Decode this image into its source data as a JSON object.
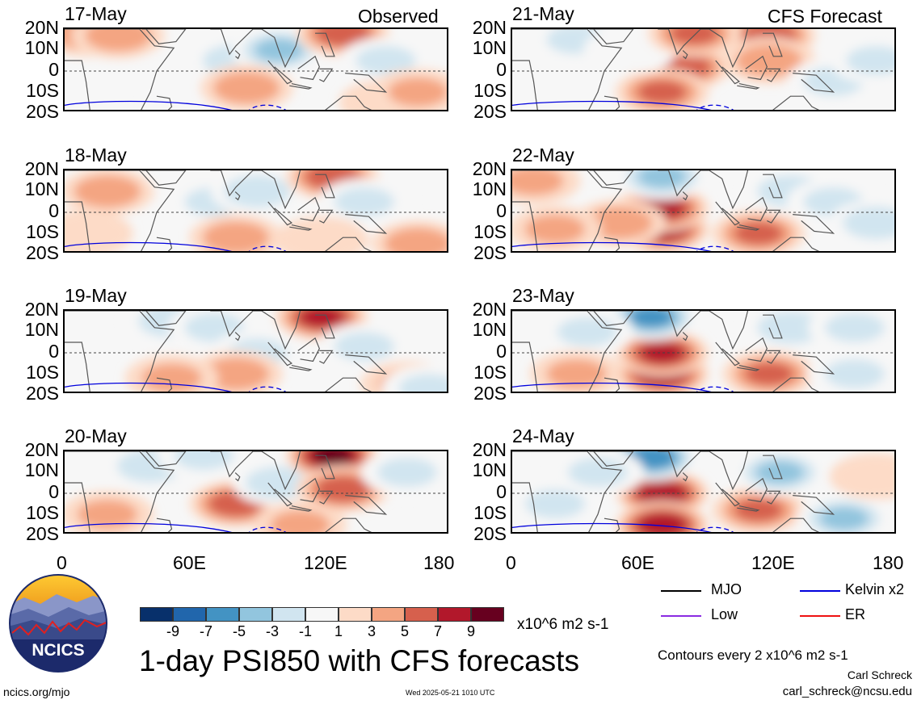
{
  "observed_label": "Observed",
  "forecast_label": "CFS Forecast",
  "lat_labels": [
    "20N",
    "10N",
    "0",
    "10S",
    "20S"
  ],
  "lon_labels": [
    "0",
    "60E",
    "120E",
    "180"
  ],
  "panels": [
    {
      "date": "17-May",
      "column": "observed"
    },
    {
      "date": "18-May",
      "column": "observed"
    },
    {
      "date": "19-May",
      "column": "observed"
    },
    {
      "date": "20-May",
      "column": "observed"
    },
    {
      "date": "21-May",
      "column": "forecast"
    },
    {
      "date": "22-May",
      "column": "forecast"
    },
    {
      "date": "23-May",
      "column": "forecast"
    },
    {
      "date": "24-May",
      "column": "forecast"
    }
  ],
  "colorbar": {
    "labels": [
      "-9",
      "-7",
      "-5",
      "-3",
      "-1",
      "1",
      "3",
      "5",
      "7",
      "9"
    ],
    "colors": [
      "#08306b",
      "#2166ac",
      "#4393c3",
      "#92c5de",
      "#d1e5f0",
      "#f7f7f7",
      "#fddbc7",
      "#f4a582",
      "#d6604d",
      "#b2182b",
      "#67001f"
    ],
    "units": "x10^6 m2 s-1"
  },
  "legend": [
    {
      "label": "MJO",
      "color": "#000000"
    },
    {
      "label": "Kelvin x2",
      "color": "#0000dd"
    },
    {
      "label": "Low",
      "color": "#8a2be2"
    },
    {
      "label": "ER",
      "color": "#ee1111"
    }
  ],
  "title": "1-day PSI850 with CFS forecasts",
  "contour_note": "Contours every 2 x10^6 m2 s-1",
  "author": "Carl Schreck",
  "email": "carl_schreck@ncsu.edu",
  "url": "ncics.org/mjo",
  "timestamp": "Wed 2025-05-21 1010 UTC",
  "logo_text": "NCICS",
  "chart_data": {
    "type": "heatmap",
    "title": "1-day PSI850 with CFS forecasts",
    "x_range": [
      0,
      180
    ],
    "y_range": [
      -20,
      20
    ],
    "x_ticks": [
      "0",
      "60E",
      "120E",
      "180"
    ],
    "y_ticks": [
      "20N",
      "10N",
      "0",
      "10S",
      "20S"
    ],
    "color_levels": [
      -9,
      -7,
      -5,
      -3,
      -1,
      1,
      3,
      5,
      7,
      9
    ],
    "units": "x10^6 m2 s-1",
    "panels": [
      {
        "date": "17-May",
        "blobs": [
          [
            10,
            18,
            4
          ],
          [
            25,
            17,
            4
          ],
          [
            55,
            -2,
            -2
          ],
          [
            80,
            5,
            -4
          ],
          [
            100,
            10,
            -5
          ],
          [
            130,
            18,
            6
          ],
          [
            150,
            5,
            -3
          ],
          [
            85,
            -8,
            4
          ],
          [
            150,
            -15,
            2
          ],
          [
            165,
            -10,
            3
          ]
        ]
      },
      {
        "date": "18-May",
        "blobs": [
          [
            20,
            10,
            4
          ],
          [
            10,
            -10,
            2
          ],
          [
            60,
            18,
            -2
          ],
          [
            70,
            5,
            -3
          ],
          [
            90,
            10,
            -4
          ],
          [
            125,
            17,
            6
          ],
          [
            140,
            5,
            -3
          ],
          [
            80,
            -12,
            4
          ],
          [
            120,
            -13,
            2
          ],
          [
            165,
            -15,
            4
          ]
        ]
      },
      {
        "date": "19-May",
        "blobs": [
          [
            50,
            15,
            -4
          ],
          [
            70,
            12,
            -3
          ],
          [
            90,
            0,
            -3
          ],
          [
            120,
            17,
            7
          ],
          [
            140,
            3,
            -3
          ],
          [
            80,
            -10,
            4
          ],
          [
            50,
            -12,
            3
          ],
          [
            160,
            -15,
            3
          ],
          [
            170,
            -17,
            -3
          ]
        ]
      },
      {
        "date": "20-May",
        "blobs": [
          [
            40,
            13,
            -4
          ],
          [
            65,
            18,
            -3
          ],
          [
            80,
            -5,
            6
          ],
          [
            100,
            5,
            -4
          ],
          [
            125,
            18,
            9
          ],
          [
            130,
            2,
            6
          ],
          [
            110,
            -15,
            3
          ],
          [
            160,
            10,
            -3
          ],
          [
            20,
            -10,
            3
          ]
        ]
      },
      {
        "date": "21-May",
        "blobs": [
          [
            80,
            2,
            6
          ],
          [
            70,
            -10,
            5
          ],
          [
            30,
            15,
            -3
          ],
          [
            55,
            10,
            -2
          ],
          [
            120,
            17,
            6
          ],
          [
            120,
            5,
            4
          ],
          [
            85,
            18,
            5
          ],
          [
            150,
            -5,
            -3
          ],
          [
            170,
            5,
            -3
          ],
          [
            20,
            -15,
            -2
          ]
        ]
      },
      {
        "date": "22-May",
        "blobs": [
          [
            70,
            -8,
            8
          ],
          [
            70,
            2,
            7
          ],
          [
            50,
            -5,
            4
          ],
          [
            70,
            17,
            -5
          ],
          [
            115,
            -10,
            5
          ],
          [
            130,
            10,
            -4
          ],
          [
            10,
            15,
            3
          ],
          [
            20,
            -8,
            3
          ],
          [
            150,
            5,
            -3
          ],
          [
            170,
            -5,
            -4
          ]
        ]
      },
      {
        "date": "23-May",
        "blobs": [
          [
            70,
            -10,
            8
          ],
          [
            70,
            0,
            7
          ],
          [
            65,
            17,
            -7
          ],
          [
            120,
            -10,
            5
          ],
          [
            35,
            10,
            -3
          ],
          [
            130,
            12,
            -4
          ],
          [
            160,
            12,
            -3
          ],
          [
            30,
            -10,
            3
          ],
          [
            160,
            -10,
            -3
          ]
        ]
      },
      {
        "date": "24-May",
        "blobs": [
          [
            70,
            0,
            8
          ],
          [
            70,
            -15,
            8
          ],
          [
            65,
            17,
            -8
          ],
          [
            40,
            10,
            -3
          ],
          [
            115,
            -8,
            5
          ],
          [
            125,
            10,
            -5
          ],
          [
            155,
            -12,
            -5
          ],
          [
            20,
            -5,
            -3
          ],
          [
            170,
            8,
            2
          ]
        ]
      }
    ]
  }
}
